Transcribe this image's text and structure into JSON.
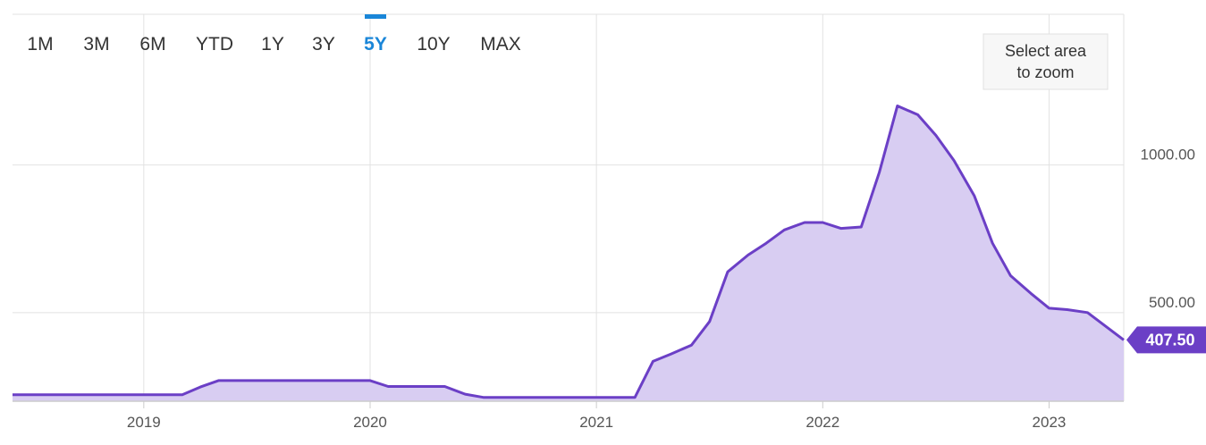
{
  "range_selector": {
    "buttons": [
      "1M",
      "3M",
      "6M",
      "YTD",
      "1Y",
      "3Y",
      "5Y",
      "10Y",
      "MAX"
    ],
    "active": "5Y"
  },
  "zoom_hint": {
    "line1": "Select area",
    "line2": "to zoom"
  },
  "colors": {
    "line": "#6b3fc6",
    "fill": "#d8cdf2",
    "grid": "#e2e2e2",
    "active_button": "#1a86d8",
    "last_value_badge": "#6b3fc6"
  },
  "chart_data": {
    "type": "area",
    "title": "",
    "xlabel": "",
    "ylabel": "",
    "x_ticks": [
      "2019",
      "2020",
      "2021",
      "2022",
      "2023"
    ],
    "y_ticks": [
      {
        "value": 500,
        "label": "500.00"
      },
      {
        "value": 1000,
        "label": "1000.00"
      }
    ],
    "xlim": [
      2018.42,
      2023.33
    ],
    "ylim": [
      200,
      1510
    ],
    "last_value": 407.5,
    "last_value_label": "407.50",
    "grid": true,
    "legend": "none",
    "series": [
      {
        "x": [
          2018.42,
          2019.17,
          2019.25,
          2019.33,
          2020.0,
          2020.08,
          2020.33,
          2020.42,
          2020.5,
          2021.17,
          2021.25,
          2021.33,
          2021.42,
          2021.5,
          2021.58,
          2021.67,
          2021.75,
          2021.83,
          2021.92,
          2022.0,
          2022.08,
          2022.17,
          2022.25,
          2022.33,
          2022.42,
          2022.5,
          2022.58,
          2022.67,
          2022.75,
          2022.83,
          2022.92,
          2023.0,
          2023.08,
          2023.17,
          2023.33
        ],
        "values": [
          222,
          222,
          248,
          270,
          270,
          250,
          250,
          224,
          213,
          213,
          335,
          360,
          390,
          470,
          638,
          695,
          735,
          780,
          805,
          805,
          785,
          790,
          975,
          1200,
          1170,
          1100,
          1015,
          895,
          735,
          625,
          565,
          515,
          510,
          500,
          407.5
        ]
      }
    ]
  }
}
